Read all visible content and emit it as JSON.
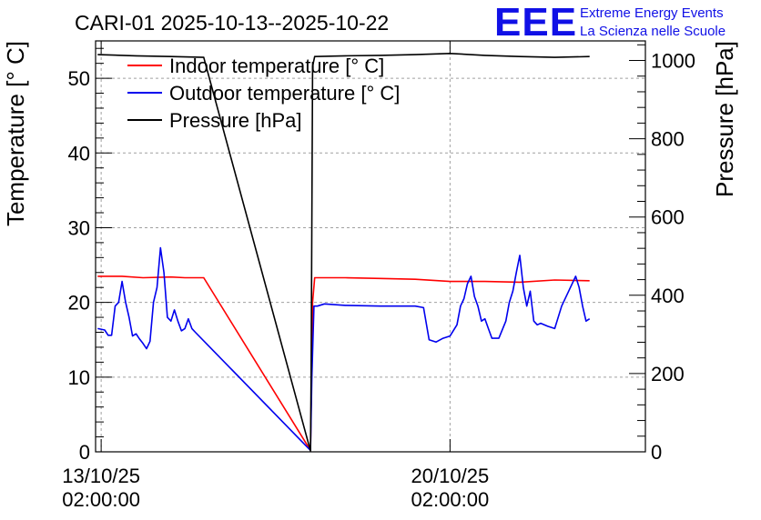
{
  "chart_data": {
    "type": "line",
    "title": "CARI-01 2025-10-13--2025-10-22",
    "logo": {
      "letters": "EEE",
      "line1": "Extreme Energy Events",
      "line2": "La Scienza nelle Scuole"
    },
    "ylabel": "Temperature [° C]",
    "y2label": "Pressure [hPa]",
    "xlim": [
      -0.08,
      7.8
    ],
    "ylim": [
      0,
      55
    ],
    "y2lim": [
      0,
      1050
    ],
    "yticks": [
      0,
      10,
      20,
      30,
      40,
      50
    ],
    "y2ticks": [
      0,
      200,
      400,
      600,
      800,
      1000
    ],
    "xticks": [
      {
        "x": 0,
        "line1": "13/10/25",
        "line2": "02:00:00"
      },
      {
        "x": 5,
        "line1": "20/10/25",
        "line2": "02:00:00"
      }
    ],
    "grid": true,
    "legend_position": "top-left",
    "series": [
      {
        "name": "Indoor temperature [° C]",
        "axis": "left",
        "color": "#ff0000",
        "x": [
          -0.05,
          0.3,
          0.6,
          1.0,
          1.2,
          1.47,
          3.0,
          3.03,
          3.06,
          3.5,
          4.0,
          4.5,
          5.0,
          5.5,
          6.0,
          6.5,
          7.0
        ],
        "y": [
          23.5,
          23.5,
          23.3,
          23.4,
          23.3,
          23.3,
          0.2,
          20.0,
          23.3,
          23.3,
          23.2,
          23.1,
          22.8,
          22.8,
          22.7,
          23.0,
          22.9
        ]
      },
      {
        "name": "Outdoor temperature [° C]",
        "axis": "left",
        "color": "#0000ee",
        "x": [
          -0.05,
          0.05,
          0.1,
          0.15,
          0.2,
          0.25,
          0.3,
          0.35,
          0.4,
          0.45,
          0.5,
          0.55,
          0.6,
          0.65,
          0.7,
          0.75,
          0.8,
          0.85,
          0.9,
          0.95,
          1.0,
          1.05,
          1.1,
          1.15,
          1.2,
          1.25,
          1.3,
          1.35,
          3.0,
          3.02,
          3.05,
          3.1,
          3.2,
          3.5,
          4.0,
          4.5,
          4.62,
          4.7,
          4.8,
          4.9,
          5.0,
          5.1,
          5.15,
          5.2,
          5.25,
          5.3,
          5.35,
          5.4,
          5.45,
          5.5,
          5.55,
          5.6,
          5.7,
          5.8,
          5.85,
          5.9,
          5.95,
          6.0,
          6.05,
          6.1,
          6.15,
          6.2,
          6.25,
          6.3,
          6.4,
          6.5,
          6.6,
          6.7,
          6.8,
          6.85,
          6.9,
          6.95,
          7.0
        ],
        "y": [
          16.5,
          16.3,
          15.6,
          15.6,
          19.5,
          20.0,
          22.8,
          20.0,
          18.0,
          15.5,
          15.8,
          15.1,
          14.5,
          13.8,
          14.8,
          20.0,
          22.0,
          27.3,
          24.0,
          18.0,
          17.5,
          19.0,
          17.5,
          16.2,
          16.5,
          17.8,
          16.5,
          16.0,
          0.2,
          10.0,
          19.5,
          19.5,
          19.8,
          19.6,
          19.5,
          19.5,
          19.3,
          15.0,
          14.7,
          15.2,
          15.5,
          17.0,
          19.5,
          20.5,
          22.5,
          23.5,
          20.8,
          19.5,
          17.5,
          17.8,
          16.5,
          15.2,
          15.2,
          17.5,
          20.0,
          21.5,
          24.0,
          26.3,
          22.0,
          19.5,
          21.5,
          17.5,
          17.0,
          17.2,
          16.8,
          16.5,
          19.5,
          21.5,
          23.5,
          22.0,
          19.5,
          17.5,
          17.8
        ]
      },
      {
        "name": "Pressure [hPa]",
        "axis": "right",
        "color": "#000000",
        "x": [
          -0.05,
          0.5,
          1.0,
          1.47,
          3.0,
          3.01,
          3.03,
          3.06,
          3.5,
          4.0,
          4.5,
          5.0,
          5.5,
          6.0,
          6.5,
          7.0
        ],
        "y": [
          1015,
          1012,
          1010,
          1008,
          2,
          200,
          985,
          1010,
          1012,
          1013,
          1015,
          1018,
          1013,
          1010,
          1008,
          1010
        ]
      }
    ]
  }
}
